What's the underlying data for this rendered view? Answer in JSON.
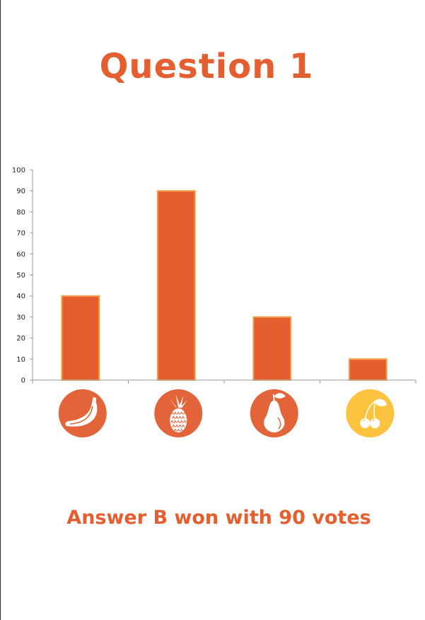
{
  "page": {
    "title": "Question 1",
    "footer": "Answer B won with 90 votes"
  },
  "colors": {
    "accent": "#E45E30",
    "bar_fill": "#E45E30",
    "bar_edge": "#F4A04A",
    "icon_orange": "#E4643A",
    "icon_yellow": "#FDC33E",
    "axis": "#9a9a9a"
  },
  "chart_data": {
    "type": "bar",
    "categories": [
      "banana-icon",
      "pineapple-icon",
      "pear-icon",
      "cherry-icon"
    ],
    "values": [
      40,
      90,
      30,
      10
    ],
    "title": "",
    "xlabel": "",
    "ylabel": "",
    "ylim": [
      0,
      100
    ],
    "yticks": [
      0,
      10,
      20,
      30,
      40,
      50,
      60,
      70,
      80,
      90,
      100
    ],
    "grid": false,
    "legend": "none"
  }
}
